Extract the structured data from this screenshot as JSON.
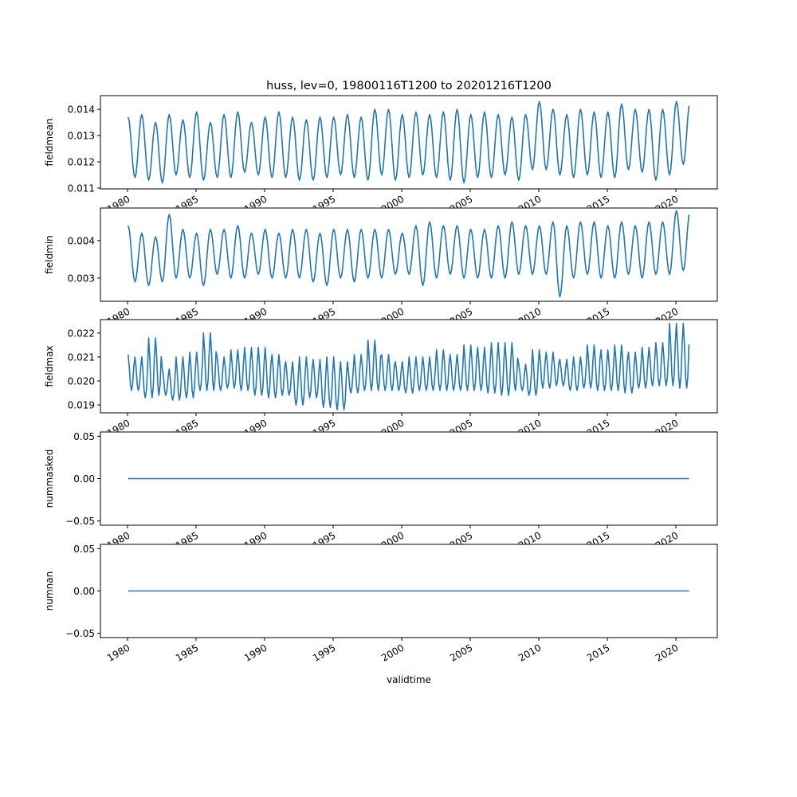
{
  "chart_data": {
    "type": "line",
    "title": "huss, lev=0, 19800116T1200 to 20201216T1200",
    "xlabel": "validtime",
    "x_range_years": [
      1980,
      2020
    ],
    "x_ticks": [
      "1980",
      "1985",
      "1990",
      "1995",
      "2000",
      "2005",
      "2010",
      "2015",
      "2020"
    ],
    "line_color": "#1f77b4",
    "note": "Monthly series; annual peak (Jan) and trough values approximated from plot",
    "panels": [
      {
        "ylabel": "fieldmean",
        "ylim": [
          0.01097,
          0.01452
        ],
        "y_ticks": [
          "0.011",
          "0.012",
          "0.013",
          "0.014"
        ],
        "y_tick_values": [
          0.011,
          0.012,
          0.013,
          0.014
        ],
        "cycle": "annual",
        "annual_peak": [
          0.0137,
          0.0138,
          0.0135,
          0.0138,
          0.0136,
          0.0139,
          0.0135,
          0.0138,
          0.0139,
          0.0135,
          0.0137,
          0.0139,
          0.0137,
          0.0136,
          0.0137,
          0.0137,
          0.0138,
          0.0137,
          0.014,
          0.014,
          0.0138,
          0.0139,
          0.0138,
          0.0139,
          0.014,
          0.0138,
          0.0139,
          0.0138,
          0.0137,
          0.0138,
          0.0143,
          0.014,
          0.0138,
          0.014,
          0.0139,
          0.0139,
          0.0142,
          0.014,
          0.014,
          0.014,
          0.0143
        ],
        "annual_trough": [
          0.0114,
          0.0113,
          0.0112,
          0.0115,
          0.0114,
          0.0113,
          0.0114,
          0.0114,
          0.0116,
          0.0115,
          0.0114,
          0.0114,
          0.0113,
          0.0113,
          0.0114,
          0.0115,
          0.0114,
          0.0113,
          0.0115,
          0.0113,
          0.0114,
          0.0115,
          0.0114,
          0.0113,
          0.0112,
          0.0114,
          0.0114,
          0.0115,
          0.0113,
          0.0117,
          0.0117,
          0.0115,
          0.0114,
          0.0115,
          0.0114,
          0.0114,
          0.0117,
          0.0116,
          0.0113,
          0.0115,
          0.0119
        ]
      },
      {
        "ylabel": "fieldmin",
        "ylim": [
          0.00238,
          0.00487
        ],
        "y_ticks": [
          "0.003",
          "0.004"
        ],
        "y_tick_values": [
          0.003,
          0.004
        ],
        "cycle": "annual",
        "annual_peak": [
          0.0044,
          0.0042,
          0.0041,
          0.0047,
          0.0043,
          0.0042,
          0.0043,
          0.0043,
          0.0044,
          0.0042,
          0.0043,
          0.0042,
          0.0043,
          0.0043,
          0.0042,
          0.0043,
          0.0043,
          0.0043,
          0.0043,
          0.0043,
          0.0042,
          0.0044,
          0.0045,
          0.0044,
          0.0044,
          0.0043,
          0.0043,
          0.0044,
          0.0045,
          0.0044,
          0.0044,
          0.0045,
          0.0044,
          0.0045,
          0.0045,
          0.0044,
          0.0045,
          0.0044,
          0.0045,
          0.0045,
          0.0048
        ],
        "annual_trough": [
          0.0029,
          0.0028,
          0.0029,
          0.003,
          0.003,
          0.0028,
          0.0031,
          0.003,
          0.003,
          0.0031,
          0.003,
          0.003,
          0.003,
          0.0029,
          0.0028,
          0.003,
          0.0029,
          0.003,
          0.003,
          0.0031,
          0.0031,
          0.0028,
          0.003,
          0.0031,
          0.003,
          0.003,
          0.003,
          0.003,
          0.0031,
          0.0031,
          0.0031,
          0.0025,
          0.003,
          0.0031,
          0.003,
          0.003,
          0.0031,
          0.003,
          0.0031,
          0.0031,
          0.0032
        ]
      },
      {
        "ylabel": "fieldmax",
        "ylim": [
          0.01867,
          0.02256
        ],
        "y_ticks": [
          "0.019",
          "0.020",
          "0.021",
          "0.022"
        ],
        "y_tick_values": [
          0.019,
          0.02,
          0.021,
          0.022
        ],
        "cycle": "semiannual",
        "annual_peak": [
          0.0211,
          0.021,
          0.0218,
          0.0205,
          0.021,
          0.0212,
          0.022,
          0.021,
          0.0213,
          0.0214,
          0.0214,
          0.0211,
          0.0208,
          0.021,
          0.0209,
          0.021,
          0.0208,
          0.0211,
          0.0217,
          0.0211,
          0.0208,
          0.021,
          0.021,
          0.0213,
          0.0211,
          0.0215,
          0.0214,
          0.0216,
          0.0216,
          0.0207,
          0.0213,
          0.0212,
          0.0209,
          0.021,
          0.0215,
          0.0213,
          0.0215,
          0.0212,
          0.0214,
          0.0216,
          0.0224
        ],
        "annual_trough": [
          0.0196,
          0.0193,
          0.0194,
          0.0192,
          0.0193,
          0.0196,
          0.0196,
          0.0197,
          0.0196,
          0.0194,
          0.0193,
          0.0194,
          0.019,
          0.0193,
          0.0189,
          0.0188,
          0.0195,
          0.0196,
          0.0196,
          0.0196,
          0.0195,
          0.0196,
          0.0196,
          0.0196,
          0.0196,
          0.0196,
          0.0195,
          0.0194,
          0.0196,
          0.0194,
          0.0197,
          0.0198,
          0.0196,
          0.0197,
          0.0196,
          0.0196,
          0.0195,
          0.0197,
          0.0198,
          0.0198,
          0.0197
        ]
      },
      {
        "ylabel": "nummasked",
        "ylim": [
          -0.055,
          0.055
        ],
        "y_ticks": [
          "−0.05",
          "0.00",
          "0.05"
        ],
        "y_tick_values": [
          -0.05,
          0,
          0.05
        ],
        "cycle": "constant",
        "constant_value": 0
      },
      {
        "ylabel": "numnan",
        "ylim": [
          -0.055,
          0.055
        ],
        "y_ticks": [
          "−0.05",
          "0.00",
          "0.05"
        ],
        "y_tick_values": [
          -0.05,
          0,
          0.05
        ],
        "cycle": "constant",
        "constant_value": 0
      }
    ]
  }
}
